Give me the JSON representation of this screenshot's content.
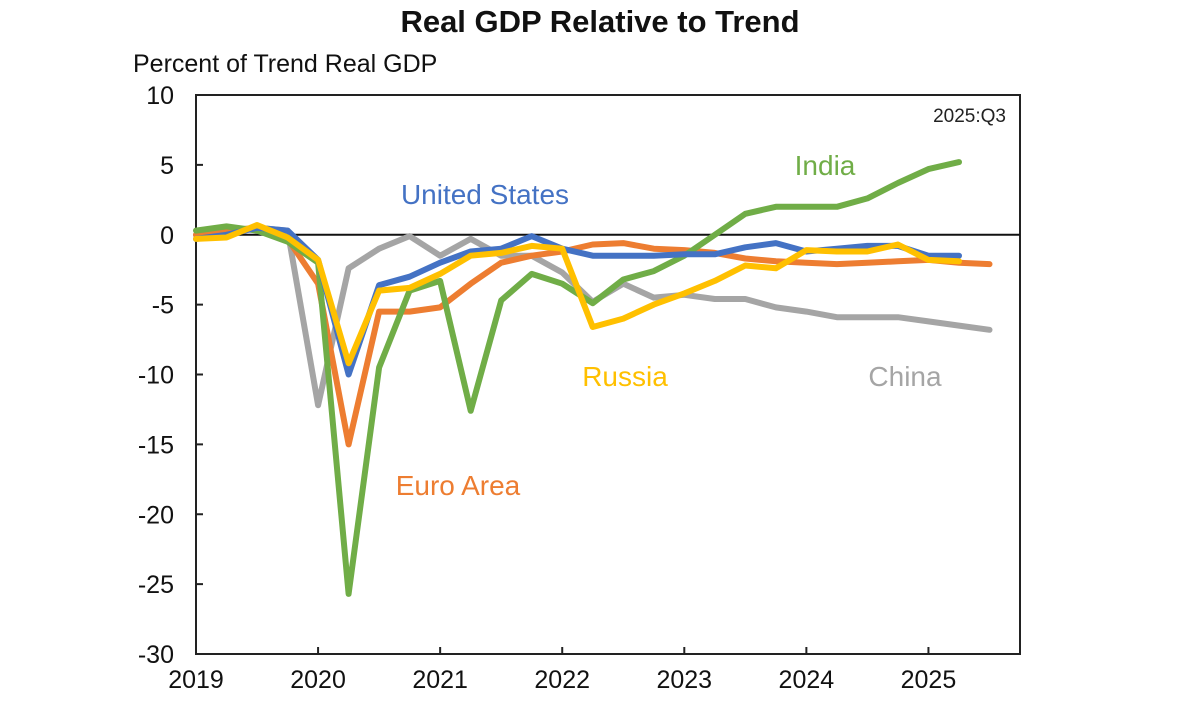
{
  "chart_data": {
    "type": "line",
    "title": "Real GDP Relative to Trend",
    "ylabel": "Percent of Trend Real GDP",
    "xlabel": "",
    "annotation": "2025:Q3",
    "ylim": [
      -30,
      10
    ],
    "yticks": [
      10,
      5,
      0,
      -5,
      -10,
      -15,
      -20,
      -25,
      -30
    ],
    "xlim": [
      2019,
      2025.75
    ],
    "xticks": [
      2019,
      2020,
      2021,
      2022,
      2023,
      2024,
      2025
    ],
    "x_frequency": "quarterly, starting 2019:Q1",
    "grid": false,
    "legend": "inline labels",
    "series": [
      {
        "name": "United States",
        "color": "#4472C4",
        "values": [
          -0.3,
          0,
          0.5,
          0.3,
          -1.8,
          -10,
          -3.6,
          -3.0,
          -2.0,
          -1.2,
          -1.0,
          -0.1,
          -1.0,
          -1.5,
          -1.5,
          -1.5,
          -1.4,
          -1.4,
          -0.9,
          -0.6,
          -1.2,
          -1.0,
          -0.8,
          -0.8,
          -1.5,
          -1.5
        ]
      },
      {
        "name": "Euro Area",
        "color": "#ED7D31",
        "values": [
          0,
          0.3,
          0.5,
          -0.3,
          -3.5,
          -15,
          -5.5,
          -5.5,
          -5.2,
          -3.5,
          -2.0,
          -1.5,
          -1.2,
          -0.7,
          -0.6,
          -1.0,
          -1.1,
          -1.3,
          -1.7,
          -1.9,
          -2.0,
          -2.1,
          -2.0,
          -1.9,
          -1.8,
          -2.0,
          -2.1
        ]
      },
      {
        "name": "China",
        "color": "#A5A5A5",
        "values": [
          0,
          0.3,
          0.5,
          0.3,
          -12.2,
          -2.4,
          -1.0,
          -0.1,
          -1.5,
          -0.3,
          -1.5,
          -1.5,
          -2.7,
          -4.8,
          -3.5,
          -4.5,
          -4.3,
          -4.6,
          -4.6,
          -5.2,
          -5.5,
          -5.9,
          -5.9,
          -5.9,
          -6.2,
          -6.5,
          -6.8
        ]
      },
      {
        "name": "India",
        "color": "#70AD47",
        "values": [
          0.3,
          0.6,
          0.3,
          -0.5,
          -2.0,
          -25.7,
          -9.5,
          -4.0,
          -3.3,
          -12.6,
          -4.7,
          -2.8,
          -3.5,
          -4.9,
          -3.2,
          -2.6,
          -1.5,
          0,
          1.5,
          2.0,
          2.0,
          2.0,
          2.6,
          3.7,
          4.7,
          5.2
        ]
      },
      {
        "name": "Russia",
        "color": "#FFC000",
        "values": [
          -0.3,
          -0.2,
          0.7,
          -0.2,
          -1.8,
          -9.2,
          -4.0,
          -3.8,
          -2.8,
          -1.5,
          -1.3,
          -0.8,
          -1.0,
          -6.6,
          -6.0,
          -5.0,
          -4.2,
          -3.3,
          -2.2,
          -2.4,
          -1.1,
          -1.2,
          -1.2,
          -0.7,
          -1.8,
          -1.9
        ]
      }
    ]
  }
}
